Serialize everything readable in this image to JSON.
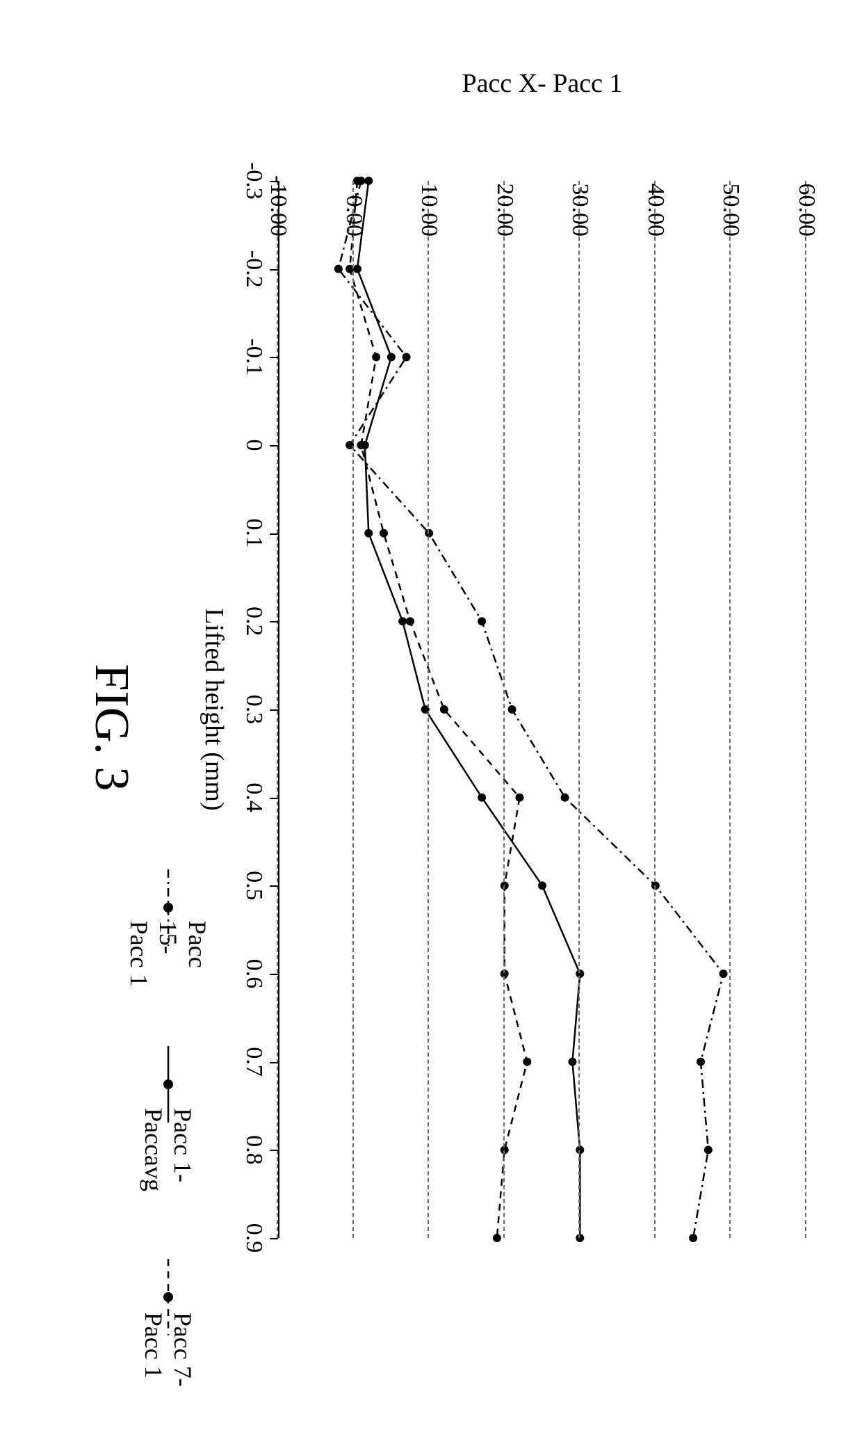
{
  "figure": {
    "caption": "FIG. 3",
    "caption_fontsize": 70,
    "background_color": "#ffffff"
  },
  "chart": {
    "type": "line",
    "font_family": "Times New Roman",
    "xlabel": "Lifted height (mm)",
    "ylabel": "Pacc X- Pacc 1",
    "label_fontsize": 38,
    "tick_fontsize": 34,
    "axis_color": "#000000",
    "grid_color": "#6b6b6b",
    "grid_dash": "7 7",
    "xlim": [
      -0.3,
      0.9
    ],
    "ylim": [
      -10,
      60
    ],
    "xticks": [
      -0.3,
      -0.2,
      -0.1,
      0,
      0.1,
      0.2,
      0.3,
      0.4,
      0.5,
      0.6,
      0.7,
      0.8,
      0.9
    ],
    "yticks": [
      -10,
      0,
      10,
      20,
      30,
      40,
      50,
      60
    ],
    "ytick_labels": [
      "-10.00",
      "0.00",
      "10.00",
      "20.00",
      "30.00",
      "40.00",
      "50.00",
      "60.00"
    ],
    "marker": {
      "shape": "circle",
      "size": 6,
      "fill": "#000000"
    },
    "line_color": "#000000",
    "line_width": 2.5,
    "series": {
      "s0": {
        "label": "Pacc 15- Pacc 1",
        "dash": "12 6 3 6",
        "x": [
          -0.3,
          -0.2,
          -0.1,
          0,
          0.1,
          0.2,
          0.3,
          0.4,
          0.5,
          0.6,
          0.7,
          0.8,
          0.9
        ],
        "y": [
          1.0,
          -2.0,
          7.0,
          -0.5,
          10.0,
          17.0,
          21.0,
          28.0,
          40.0,
          49.0,
          46.0,
          47.0,
          45.0
        ]
      },
      "s1": {
        "label": "Pacc 1- Paccavg",
        "dash": "none",
        "x": [
          -0.3,
          -0.2,
          -0.1,
          0,
          0.1,
          0.2,
          0.3,
          0.4,
          0.5,
          0.6,
          0.7,
          0.8,
          0.9
        ],
        "y": [
          2.0,
          0.5,
          5.0,
          1.5,
          2.0,
          6.5,
          9.5,
          17.0,
          25.0,
          30.0,
          29.0,
          30.0,
          30.0
        ]
      },
      "s2": {
        "label": "Pacc 7- Pacc 1",
        "dash": "10 8",
        "x": [
          -0.3,
          -0.2,
          -0.1,
          0,
          0.1,
          0.2,
          0.3,
          0.4,
          0.5,
          0.6,
          0.7,
          0.8,
          0.9
        ],
        "y": [
          0.5,
          -0.5,
          3.0,
          1.0,
          4.0,
          7.5,
          12.0,
          22.0,
          20.0,
          20.0,
          23.0,
          20.0,
          19.0
        ]
      }
    },
    "legend_order": [
      "s0",
      "s1",
      "s2"
    ]
  }
}
